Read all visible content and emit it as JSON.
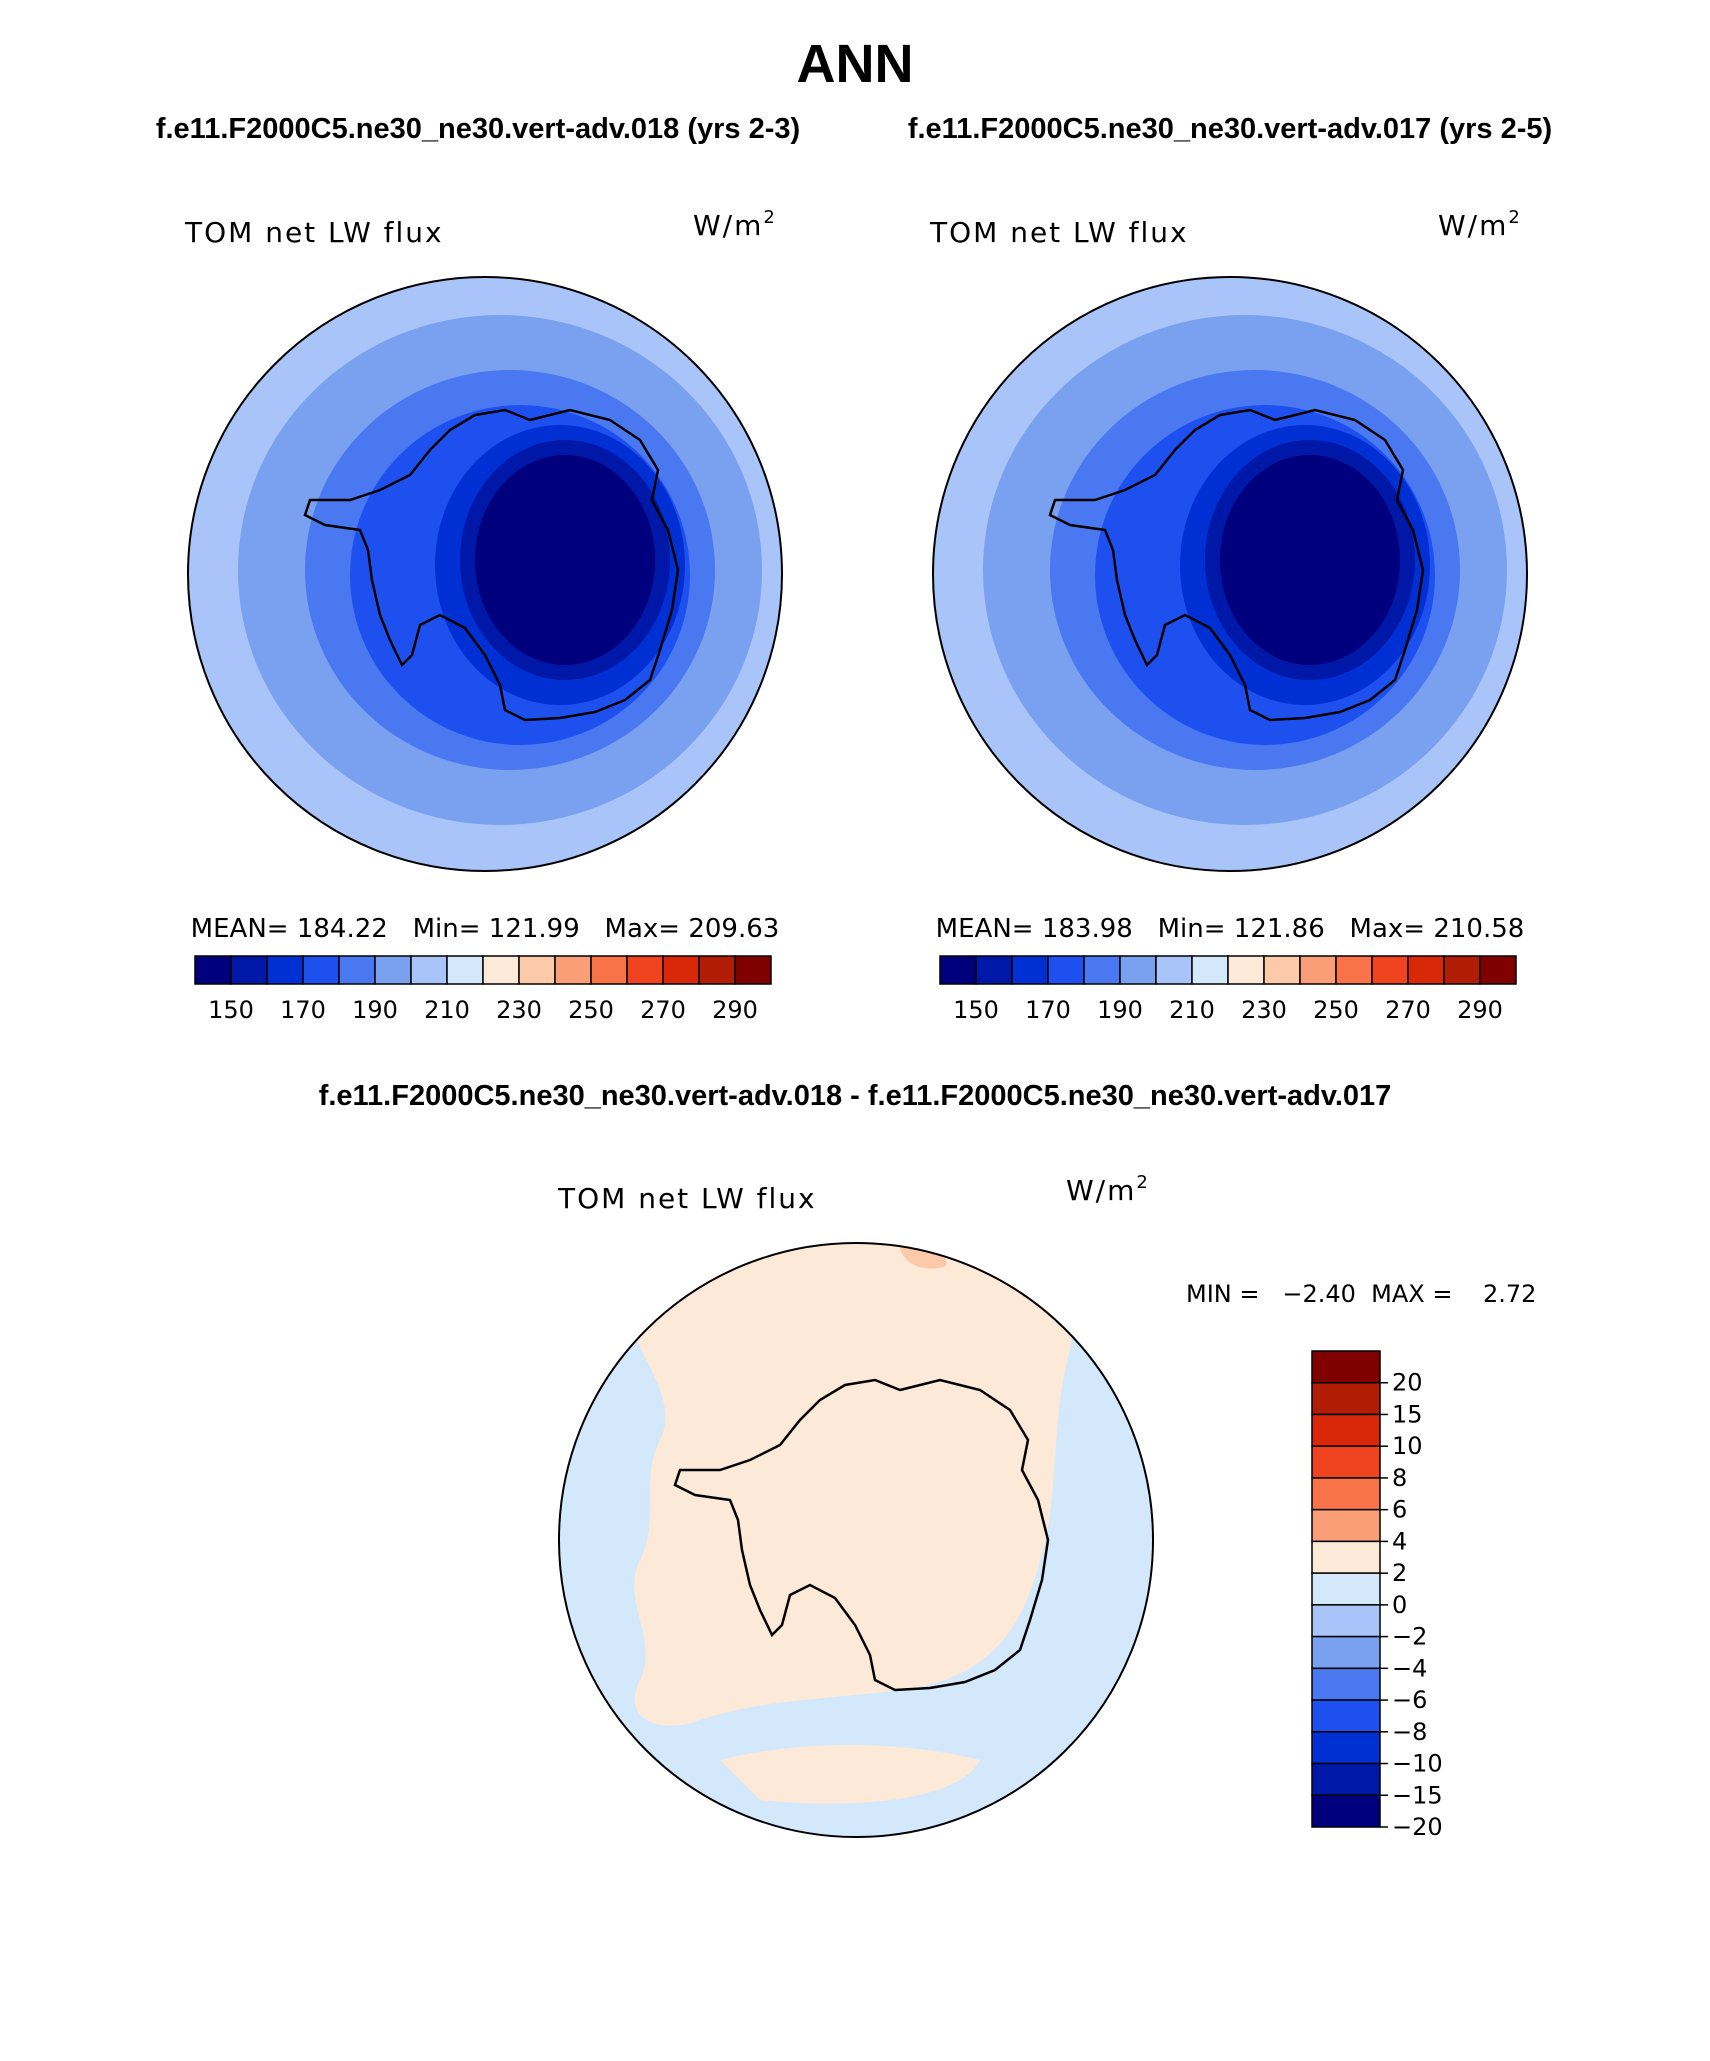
{
  "figure": {
    "title": "ANN",
    "left_case": "f.e11.F2000C5.ne30_ne30.vert-adv.018 (yrs 2-3)",
    "right_case": "f.e11.F2000C5.ne30_ne30.vert-adv.017 (yrs 2-5)",
    "diff_title": "f.e11.F2000C5.ne30_ne30.vert-adv.018 - f.e11.F2000C5.ne30_ne30.vert-adv.017"
  },
  "panels": [
    {
      "variable": "TOM net LW flux",
      "units_base": "W/m",
      "units_exp": "2",
      "stats": "MEAN= 184.22   Min= 121.99   Max= 209.63"
    },
    {
      "variable": "TOM net LW flux",
      "units_base": "W/m",
      "units_exp": "2",
      "stats": "MEAN= 183.98   Min= 121.86   Max= 210.58"
    },
    {
      "variable": "TOM net LW flux",
      "units_base": "W/m",
      "units_exp": "2",
      "stats": "MIN =   −2.40  MAX =    2.72"
    }
  ],
  "abs_colorbar": {
    "colors": [
      "#00007f",
      "#0018a8",
      "#0030d4",
      "#1e50f0",
      "#4a78f0",
      "#7aa0f0",
      "#a8c4f8",
      "#d4e8fc",
      "#fde9d8",
      "#fccaa8",
      "#fa9e78",
      "#f87448",
      "#f04420",
      "#d82808",
      "#b01c04",
      "#800000"
    ],
    "labels": [
      "150",
      "170",
      "190",
      "210",
      "230",
      "250",
      "270",
      "290"
    ]
  },
  "diff_colorbar": {
    "colors": [
      "#800000",
      "#b01c04",
      "#d82808",
      "#f04420",
      "#f87448",
      "#fa9e78",
      "#fde9d8",
      "#d4e8fc",
      "#a8c4f8",
      "#7aa0f0",
      "#4a78f0",
      "#1e50f0",
      "#0030d4",
      "#0018a8",
      "#00007f"
    ],
    "labels": [
      "20",
      "15",
      "10",
      "8",
      "6",
      "4",
      "2",
      "0",
      "−2",
      "−4",
      "−6",
      "−8",
      "−10",
      "−15",
      "−20"
    ]
  },
  "map_colors": {
    "lev210": "#a8c4f8",
    "lev190": "#7aa0f0",
    "lev170": "#4a78f0",
    "lev150": "#1e50f0",
    "lev140": "#0030d4",
    "lev130": "#0018a8",
    "lev120": "#00007f",
    "diff_pos": "#fde9d8",
    "diff_neg": "#d4e8fc",
    "diff_pos2": "#fccaa8"
  }
}
